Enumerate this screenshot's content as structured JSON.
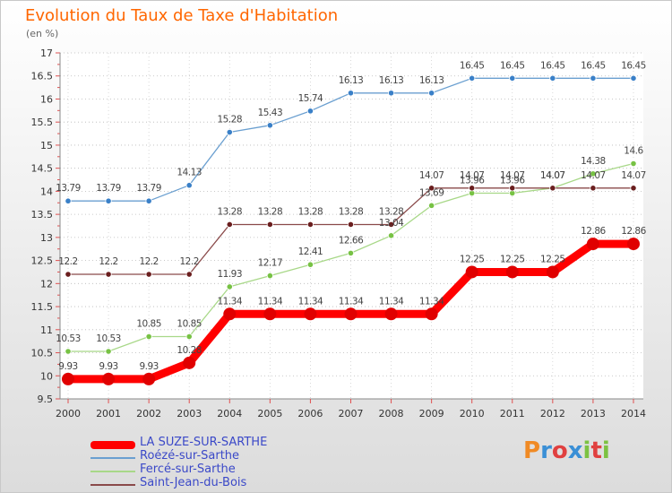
{
  "header": {
    "title": "Evolution du Taux de Taxe d'Habitation",
    "unit": "(en %)"
  },
  "logo": {
    "text": "Proxiti",
    "colors": [
      "#f08a24",
      "#3a8fd6",
      "#e04040",
      "#3a8fd6",
      "#7cc242",
      "#e04040",
      "#7cc242"
    ]
  },
  "chart_data": {
    "type": "line",
    "ylim": [
      9.5,
      17
    ],
    "yticks": [
      "9.5",
      "10",
      "10.5",
      "11",
      "11.5",
      "12",
      "12.5",
      "13",
      "13.5",
      "14",
      "14.5",
      "15",
      "15.5",
      "16",
      "16.5",
      "17"
    ],
    "x": [
      "2000",
      "2001",
      "2002",
      "2003",
      "2004",
      "2005",
      "2006",
      "2007",
      "2008",
      "2009",
      "2010",
      "2011",
      "2012",
      "2013",
      "2014"
    ],
    "legend_position": "bottom-left",
    "grid": "horizontal-dotted",
    "series": [
      {
        "name": "LA SUZE-SUR-SARTHE",
        "color": "#ff0000",
        "markerColor": "#e00000",
        "width": 9,
        "marker": 7,
        "values": [
          9.93,
          9.93,
          9.93,
          10.28,
          11.34,
          11.34,
          11.34,
          11.34,
          11.34,
          11.34,
          12.25,
          12.25,
          12.25,
          12.86,
          12.86
        ],
        "labels": [
          "9.93",
          "9.93",
          "9.93",
          "10.28",
          "11.34",
          "11.34",
          "11.34",
          "11.34",
          "11.34",
          "11.34",
          "12.25",
          "12.25",
          "12.25",
          "12.86",
          "12.86"
        ]
      },
      {
        "name": "Roézé-sur-Sarthe",
        "color": "#6a9fd0",
        "markerColor": "#3a80c8",
        "width": 1.3,
        "marker": 3.2,
        "values": [
          13.79,
          13.79,
          13.79,
          14.13,
          15.28,
          15.43,
          15.74,
          16.13,
          16.13,
          16.13,
          16.45,
          16.45,
          16.45,
          16.45,
          16.45
        ],
        "labels": [
          "13.79",
          "13.79",
          "13.79",
          "14.13",
          "15.28",
          "15.43",
          "15.74",
          "16.13",
          "16.13",
          "16.13",
          "16.45",
          "16.45",
          "16.45",
          "16.45",
          "16.45"
        ]
      },
      {
        "name": "Fercé-sur-Sarthe",
        "color": "#a8d888",
        "markerColor": "#77c244",
        "width": 1.3,
        "marker": 3.2,
        "values": [
          10.53,
          10.53,
          10.85,
          10.85,
          11.93,
          12.17,
          12.41,
          12.66,
          13.04,
          13.69,
          13.96,
          13.96,
          14.07,
          14.38,
          14.6
        ],
        "labels": [
          "10.53",
          "10.53",
          "10.85",
          "10.85",
          "11.93",
          "12.17",
          "12.41",
          "12.66",
          "13.04",
          "13.69",
          "13.96",
          "13.96",
          "14.07",
          "14.38",
          "14.6"
        ]
      },
      {
        "name": "Saint-Jean-du-Bois",
        "color": "#8a4a4a",
        "markerColor": "#6a1e1e",
        "width": 1.3,
        "marker": 3.2,
        "values": [
          12.2,
          12.2,
          12.2,
          12.2,
          13.28,
          13.28,
          13.28,
          13.28,
          13.28,
          14.07,
          14.07,
          14.07,
          14.07,
          14.07,
          14.07
        ],
        "labels": [
          "12.2",
          "12.2",
          "12.2",
          "12.2",
          "13.28",
          "13.28",
          "13.28",
          "13.28",
          "13.28",
          "14.07",
          "14.07",
          "14.07",
          "14.07",
          "14.07",
          "14.07"
        ]
      }
    ]
  }
}
